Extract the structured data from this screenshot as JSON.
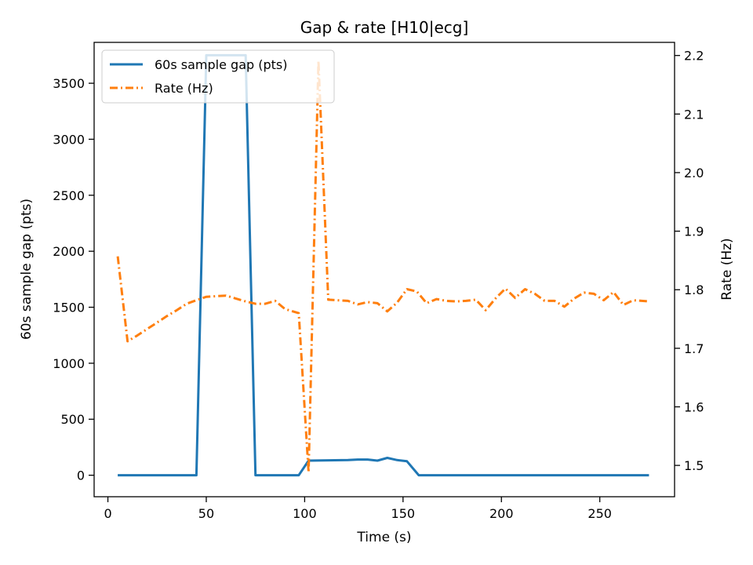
{
  "chart_data": {
    "type": "line",
    "title": "Gap & rate [H10|ecg]",
    "xlabel": "Time (s)",
    "ylabel_left": "60s sample gap (pts)",
    "ylabel_right": "Rate (Hz)",
    "xlim": [
      -7,
      288
    ],
    "ylim_left": [
      -192,
      3865
    ],
    "ylim_right": [
      1.4465,
      2.2224
    ],
    "x_ticks": [
      0,
      50,
      100,
      150,
      200,
      250
    ],
    "y_left_ticks": [
      0,
      500,
      1000,
      1500,
      2000,
      2500,
      3000,
      3500
    ],
    "y_right_ticks": [
      1.5,
      1.6,
      1.7,
      1.8,
      1.9,
      2.0,
      2.1,
      2.2
    ],
    "legend_position": "upper-left",
    "grid": false,
    "series": [
      {
        "name": "60s sample gap (pts)",
        "axis": "left",
        "color": "#1f77b4",
        "style": "solid",
        "points": [
          [
            5,
            0
          ],
          [
            45,
            0
          ],
          [
            50,
            3750
          ],
          [
            70,
            3750
          ],
          [
            75,
            0
          ],
          [
            97,
            0
          ],
          [
            102,
            130
          ],
          [
            122,
            135
          ],
          [
            127,
            140
          ],
          [
            132,
            140
          ],
          [
            137,
            130
          ],
          [
            142,
            155
          ],
          [
            147,
            135
          ],
          [
            152,
            125
          ],
          [
            158,
            0
          ],
          [
            275,
            0
          ]
        ]
      },
      {
        "name": "Rate (Hz)",
        "axis": "right",
        "color": "#ff7f0e",
        "style": "dashdot",
        "points": [
          [
            5,
            1.857
          ],
          [
            10,
            1.712
          ],
          [
            15,
            1.722
          ],
          [
            20,
            1.733
          ],
          [
            25,
            1.744
          ],
          [
            30,
            1.755
          ],
          [
            35,
            1.765
          ],
          [
            40,
            1.776
          ],
          [
            45,
            1.782
          ],
          [
            50,
            1.788
          ],
          [
            55,
            1.789
          ],
          [
            60,
            1.79
          ],
          [
            65,
            1.785
          ],
          [
            70,
            1.78
          ],
          [
            75,
            1.776
          ],
          [
            80,
            1.776
          ],
          [
            85,
            1.781
          ],
          [
            90,
            1.767
          ],
          [
            97,
            1.76
          ],
          [
            102,
            1.488
          ],
          [
            107,
            2.191
          ],
          [
            112,
            1.783
          ],
          [
            122,
            1.781
          ],
          [
            127,
            1.775
          ],
          [
            132,
            1.779
          ],
          [
            137,
            1.777
          ],
          [
            142,
            1.763
          ],
          [
            147,
            1.778
          ],
          [
            152,
            1.801
          ],
          [
            157,
            1.797
          ],
          [
            162,
            1.777
          ],
          [
            167,
            1.784
          ],
          [
            172,
            1.781
          ],
          [
            177,
            1.78
          ],
          [
            182,
            1.781
          ],
          [
            187,
            1.783
          ],
          [
            192,
            1.765
          ],
          [
            197,
            1.785
          ],
          [
            202,
            1.802
          ],
          [
            207,
            1.786
          ],
          [
            212,
            1.801
          ],
          [
            217,
            1.793
          ],
          [
            222,
            1.781
          ],
          [
            227,
            1.781
          ],
          [
            232,
            1.771
          ],
          [
            237,
            1.785
          ],
          [
            242,
            1.795
          ],
          [
            247,
            1.793
          ],
          [
            252,
            1.782
          ],
          [
            257,
            1.796
          ],
          [
            262,
            1.774
          ],
          [
            267,
            1.782
          ],
          [
            275,
            1.78
          ]
        ]
      }
    ]
  }
}
